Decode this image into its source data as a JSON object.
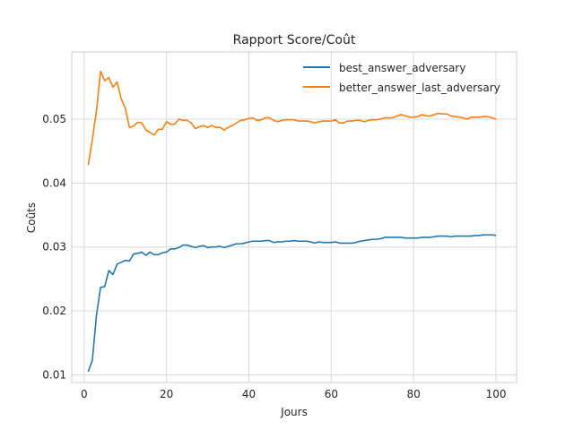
{
  "chart_data": {
    "type": "line",
    "title": "Rapport Score/Coût",
    "xlabel": "Jours",
    "ylabel": "Coûts",
    "xlim": [
      -3,
      105
    ],
    "ylim": [
      0.0088,
      0.0605
    ],
    "xticks": [
      0,
      20,
      40,
      60,
      80,
      100
    ],
    "yticks": [
      0.01,
      0.02,
      0.03,
      0.04,
      0.05
    ],
    "ytick_labels": [
      "0.01",
      "0.02",
      "0.03",
      "0.04",
      "0.05"
    ],
    "grid": true,
    "legend_position": "top-right",
    "x": [
      1,
      2,
      3,
      4,
      5,
      6,
      7,
      8,
      9,
      10,
      11,
      12,
      13,
      14,
      15,
      16,
      17,
      18,
      19,
      20,
      21,
      22,
      23,
      24,
      25,
      26,
      27,
      28,
      29,
      30,
      31,
      32,
      33,
      34,
      35,
      36,
      37,
      38,
      39,
      40,
      41,
      42,
      43,
      44,
      45,
      46,
      47,
      48,
      49,
      50,
      51,
      52,
      53,
      54,
      55,
      56,
      57,
      58,
      59,
      60,
      61,
      62,
      63,
      64,
      65,
      66,
      67,
      68,
      69,
      70,
      71,
      72,
      73,
      74,
      75,
      76,
      77,
      78,
      79,
      80,
      81,
      82,
      83,
      84,
      85,
      86,
      87,
      88,
      89,
      90,
      91,
      92,
      93,
      94,
      95,
      96,
      97,
      98,
      99,
      100
    ],
    "series": [
      {
        "name": "best_answer_adversary",
        "color": "#1f77b4",
        "values": [
          0.0105,
          0.0123,
          0.0193,
          0.0237,
          0.0238,
          0.0263,
          0.0257,
          0.0273,
          0.0276,
          0.0279,
          0.0278,
          0.0289,
          0.029,
          0.0292,
          0.0287,
          0.0292,
          0.0288,
          0.0288,
          0.0291,
          0.0292,
          0.0297,
          0.0297,
          0.0299,
          0.0303,
          0.0303,
          0.0301,
          0.0299,
          0.0301,
          0.0302,
          0.0299,
          0.03,
          0.03,
          0.0301,
          0.0299,
          0.0301,
          0.0303,
          0.0305,
          0.0305,
          0.0306,
          0.0308,
          0.0309,
          0.0309,
          0.0309,
          0.031,
          0.031,
          0.0307,
          0.0308,
          0.0308,
          0.0309,
          0.0309,
          0.031,
          0.0309,
          0.0309,
          0.0309,
          0.0308,
          0.0306,
          0.0308,
          0.0307,
          0.0307,
          0.0307,
          0.0308,
          0.0306,
          0.0306,
          0.0306,
          0.0306,
          0.0307,
          0.0309,
          0.031,
          0.0311,
          0.0312,
          0.0312,
          0.0313,
          0.0315,
          0.0315,
          0.0315,
          0.0315,
          0.0315,
          0.0314,
          0.0314,
          0.0314,
          0.0314,
          0.0315,
          0.0315,
          0.0315,
          0.0316,
          0.0317,
          0.0317,
          0.0317,
          0.0316,
          0.0317,
          0.0317,
          0.0317,
          0.0317,
          0.0317,
          0.0318,
          0.0318,
          0.0319,
          0.0319,
          0.0319,
          0.0318
        ]
      },
      {
        "name": "better_answer_last_adversary",
        "color": "#ff7f0e",
        "values": [
          0.0428,
          0.0468,
          0.0513,
          0.0575,
          0.056,
          0.0565,
          0.055,
          0.0558,
          0.0532,
          0.0517,
          0.0487,
          0.0489,
          0.0495,
          0.0494,
          0.0483,
          0.0479,
          0.0475,
          0.0484,
          0.0484,
          0.0496,
          0.0492,
          0.0492,
          0.05,
          0.0498,
          0.0498,
          0.0494,
          0.0485,
          0.0488,
          0.049,
          0.0487,
          0.049,
          0.0487,
          0.0487,
          0.0483,
          0.0487,
          0.049,
          0.0494,
          0.0498,
          0.0499,
          0.0501,
          0.0502,
          0.0498,
          0.0499,
          0.0502,
          0.0502,
          0.0498,
          0.0496,
          0.0498,
          0.0499,
          0.0499,
          0.0499,
          0.0497,
          0.0497,
          0.0497,
          0.0496,
          0.0494,
          0.0496,
          0.0497,
          0.0497,
          0.0497,
          0.0499,
          0.0494,
          0.0494,
          0.0497,
          0.0497,
          0.0498,
          0.0498,
          0.0496,
          0.0498,
          0.0499,
          0.0499,
          0.05,
          0.0502,
          0.0502,
          0.0502,
          0.0505,
          0.0507,
          0.0505,
          0.0503,
          0.0503,
          0.0504,
          0.0507,
          0.0505,
          0.0505,
          0.0507,
          0.0509,
          0.0508,
          0.0508,
          0.0505,
          0.0504,
          0.0503,
          0.0502,
          0.05,
          0.0503,
          0.0503,
          0.0503,
          0.0504,
          0.0504,
          0.0502,
          0.05
        ]
      }
    ]
  }
}
